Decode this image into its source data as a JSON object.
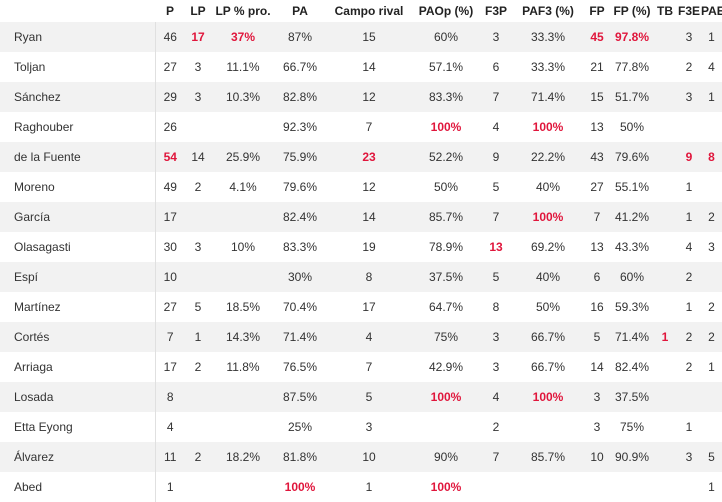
{
  "columns": [
    "",
    "P",
    "LP",
    "LP % pro.",
    "PA",
    "Campo rival",
    "PAOp (%)",
    "F3P",
    "PAF3 (%)",
    "FP",
    "FP (%)",
    "TB",
    "F3E",
    "PAE"
  ],
  "rows": [
    {
      "name": "Ryan",
      "values": [
        "46",
        "17",
        "37%",
        "87%",
        "15",
        "60%",
        "3",
        "33.3%",
        "45",
        "97.8%",
        "",
        "3",
        "1"
      ],
      "highlight": [
        1,
        2,
        8,
        9
      ]
    },
    {
      "name": "Toljan",
      "values": [
        "27",
        "3",
        "11.1%",
        "66.7%",
        "14",
        "57.1%",
        "6",
        "33.3%",
        "21",
        "77.8%",
        "",
        "2",
        "4"
      ],
      "highlight": []
    },
    {
      "name": "Sánchez",
      "values": [
        "29",
        "3",
        "10.3%",
        "82.8%",
        "12",
        "83.3%",
        "7",
        "71.4%",
        "15",
        "51.7%",
        "",
        "3",
        "1"
      ],
      "highlight": []
    },
    {
      "name": "Raghouber",
      "values": [
        "26",
        "",
        "",
        "92.3%",
        "7",
        "100%",
        "4",
        "100%",
        "13",
        "50%",
        "",
        "",
        ""
      ],
      "highlight": [
        5,
        7
      ]
    },
    {
      "name": "de la Fuente",
      "values": [
        "54",
        "14",
        "25.9%",
        "75.9%",
        "23",
        "52.2%",
        "9",
        "22.2%",
        "43",
        "79.6%",
        "",
        "9",
        "8"
      ],
      "highlight": [
        0,
        4,
        11,
        12
      ]
    },
    {
      "name": "Moreno",
      "values": [
        "49",
        "2",
        "4.1%",
        "79.6%",
        "12",
        "50%",
        "5",
        "40%",
        "27",
        "55.1%",
        "",
        "1",
        ""
      ],
      "highlight": []
    },
    {
      "name": "García",
      "values": [
        "17",
        "",
        "",
        "82.4%",
        "14",
        "85.7%",
        "7",
        "100%",
        "7",
        "41.2%",
        "",
        "1",
        "2"
      ],
      "highlight": [
        7
      ]
    },
    {
      "name": "Olasagasti",
      "values": [
        "30",
        "3",
        "10%",
        "83.3%",
        "19",
        "78.9%",
        "13",
        "69.2%",
        "13",
        "43.3%",
        "",
        "4",
        "3"
      ],
      "highlight": [
        6
      ]
    },
    {
      "name": "Espí",
      "values": [
        "10",
        "",
        "",
        "30%",
        "8",
        "37.5%",
        "5",
        "40%",
        "6",
        "60%",
        "",
        "2",
        ""
      ],
      "highlight": []
    },
    {
      "name": "Martínez",
      "values": [
        "27",
        "5",
        "18.5%",
        "70.4%",
        "17",
        "64.7%",
        "8",
        "50%",
        "16",
        "59.3%",
        "",
        "1",
        "2"
      ],
      "highlight": []
    },
    {
      "name": "Cortés",
      "values": [
        "7",
        "1",
        "14.3%",
        "71.4%",
        "4",
        "75%",
        "3",
        "66.7%",
        "5",
        "71.4%",
        "1",
        "2",
        "2"
      ],
      "highlight": [
        10
      ]
    },
    {
      "name": "Arriaga",
      "values": [
        "17",
        "2",
        "11.8%",
        "76.5%",
        "7",
        "42.9%",
        "3",
        "66.7%",
        "14",
        "82.4%",
        "",
        "2",
        "1"
      ],
      "highlight": []
    },
    {
      "name": "Losada",
      "values": [
        "8",
        "",
        "",
        "87.5%",
        "5",
        "100%",
        "4",
        "100%",
        "3",
        "37.5%",
        "",
        "",
        ""
      ],
      "highlight": [
        5,
        7
      ]
    },
    {
      "name": "Etta Eyong",
      "values": [
        "4",
        "",
        "",
        "25%",
        "3",
        "",
        "2",
        "",
        "3",
        "75%",
        "",
        "1",
        ""
      ],
      "highlight": []
    },
    {
      "name": "Álvarez",
      "values": [
        "11",
        "2",
        "18.2%",
        "81.8%",
        "10",
        "90%",
        "7",
        "85.7%",
        "10",
        "90.9%",
        "",
        "3",
        "5"
      ],
      "highlight": []
    },
    {
      "name": "Abed",
      "values": [
        "1",
        "",
        "",
        "100%",
        "1",
        "100%",
        "",
        "",
        "",
        "",
        "",
        "",
        "1"
      ],
      "highlight": [
        3,
        5
      ]
    }
  ],
  "colors": {
    "highlight": "#e0163c",
    "stripe": "#f2f2f2"
  }
}
